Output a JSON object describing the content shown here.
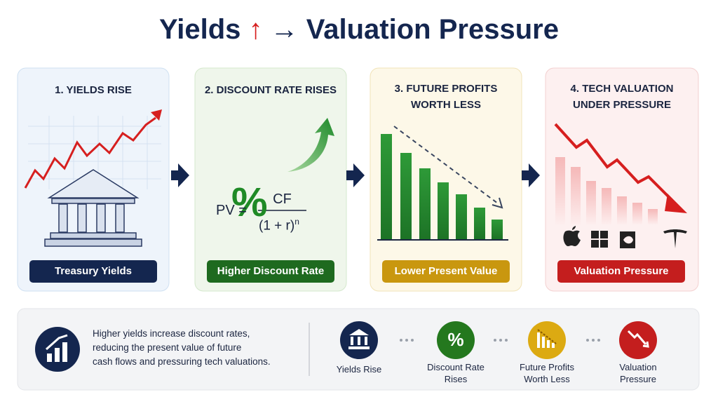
{
  "header": {
    "title_start": "Yields",
    "title_up": "↑",
    "title_arrow": "→",
    "title_end": "Valuation Pressure"
  },
  "panels": [
    {
      "heading": [
        "1. YIELDS RISE"
      ],
      "label": "Treasury Yields"
    },
    {
      "heading": [
        "2. DISCOUNT RATE RISES"
      ],
      "symbol": "%",
      "formula": {
        "lhs": "PV =",
        "numerator": "CF",
        "denominator": "(1 + r)",
        "exponent": "n"
      },
      "label": "Higher Discount Rate"
    },
    {
      "heading": [
        "3. FUTURE PROFITS",
        "WORTH LESS"
      ],
      "label": "Lower Present Value"
    },
    {
      "heading": [
        "4. TECH VALUATION",
        "UNDER PRESSURE"
      ],
      "label": "Valuation Pressure"
    }
  ],
  "summary": {
    "text": [
      "Higher yields increase discount rates,",
      "reducing the present value of future",
      "cash flows and pressuring tech valuations."
    ],
    "steps": [
      {
        "label": [
          "Yields Rise"
        ]
      },
      {
        "icon": "%",
        "label": [
          "Discount Rate",
          "Rises"
        ]
      },
      {
        "label": [
          "Future Profits",
          "Worth Less"
        ]
      },
      {
        "label": [
          "Valuation",
          "Pressure"
        ]
      }
    ]
  }
}
